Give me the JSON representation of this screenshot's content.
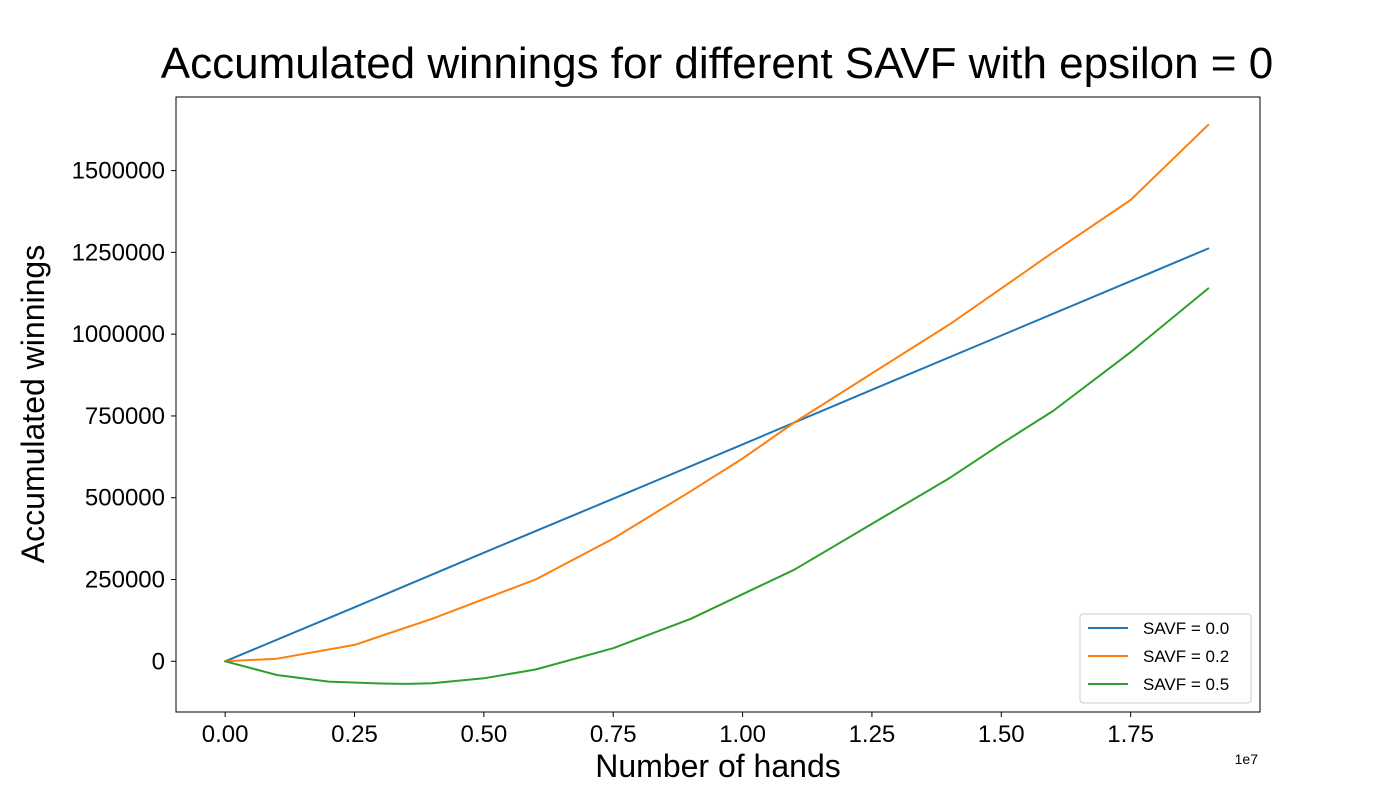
{
  "chart_data": {
    "type": "line",
    "title": "Accumulated winnings for different SAVF with epsilon = 0",
    "xlabel": "Number of hands",
    "ylabel": "Accumulated winnings",
    "x_offset_label": "1e7",
    "x_scale": 10000000,
    "xlim": [
      -0.095,
      2.0
    ],
    "ylim": [
      -155000,
      1725000
    ],
    "x_ticks": [
      0.0,
      0.25,
      0.5,
      0.75,
      1.0,
      1.25,
      1.5,
      1.75
    ],
    "x_tick_labels": [
      "0.00",
      "0.25",
      "0.50",
      "0.75",
      "1.00",
      "1.25",
      "1.50",
      "1.75"
    ],
    "y_ticks": [
      0,
      250000,
      500000,
      750000,
      1000000,
      1250000,
      1500000
    ],
    "y_tick_labels": [
      "0",
      "250000",
      "500000",
      "750000",
      "1000000",
      "1250000",
      "1500000"
    ],
    "grid": false,
    "legend_position": "lower-right",
    "series": [
      {
        "name": "SAVF = 0.0",
        "color": "#1f77b4",
        "x": [
          0.0,
          0.25,
          0.5,
          0.75,
          1.0,
          1.25,
          1.5,
          1.75,
          1.9
        ],
        "y": [
          0,
          165000,
          332000,
          497000,
          663000,
          830000,
          996000,
          1162000,
          1262000
        ]
      },
      {
        "name": "SAVF = 0.2",
        "color": "#ff7f0e",
        "x": [
          0.0,
          0.1,
          0.25,
          0.4,
          0.5,
          0.6,
          0.75,
          0.9,
          1.0,
          1.1,
          1.25,
          1.4,
          1.5,
          1.6,
          1.75,
          1.9
        ],
        "y": [
          0,
          8000,
          50000,
          130000,
          190000,
          250000,
          375000,
          520000,
          620000,
          730000,
          880000,
          1030000,
          1140000,
          1250000,
          1410000,
          1640000
        ]
      },
      {
        "name": "SAVF = 0.5",
        "color": "#2ca02c",
        "x": [
          0.0,
          0.1,
          0.2,
          0.3,
          0.35,
          0.4,
          0.5,
          0.6,
          0.75,
          0.9,
          1.0,
          1.1,
          1.25,
          1.4,
          1.5,
          1.6,
          1.75,
          1.9
        ],
        "y": [
          0,
          -42000,
          -62000,
          -68000,
          -69000,
          -67000,
          -52000,
          -25000,
          40000,
          130000,
          205000,
          280000,
          420000,
          560000,
          665000,
          765000,
          945000,
          1140000
        ]
      }
    ]
  }
}
